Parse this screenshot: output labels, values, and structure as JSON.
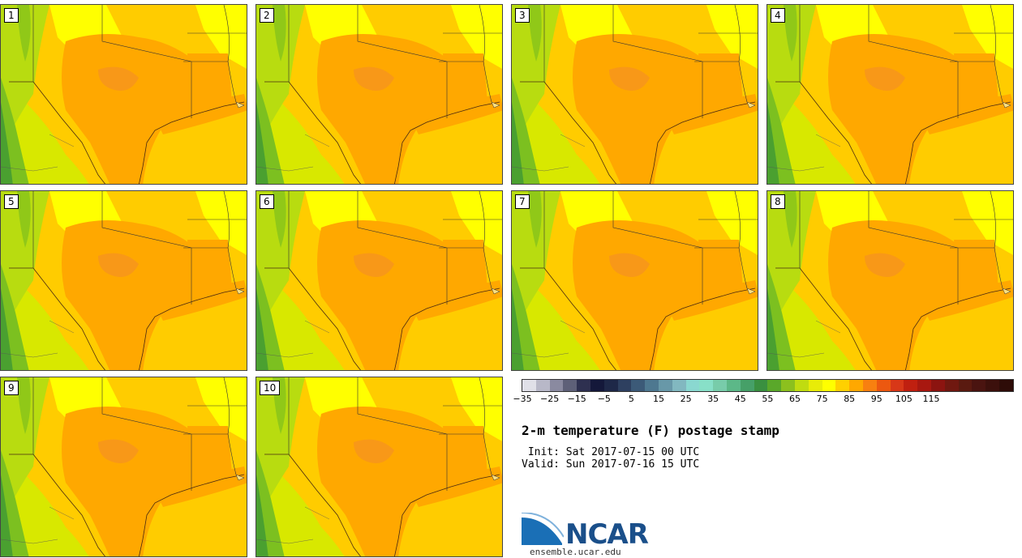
{
  "panels": [
    {
      "label": "1"
    },
    {
      "label": "2"
    },
    {
      "label": "3"
    },
    {
      "label": "4"
    },
    {
      "label": "5"
    },
    {
      "label": "6"
    },
    {
      "label": "7"
    },
    {
      "label": "8"
    },
    {
      "label": "9"
    },
    {
      "label": "10"
    }
  ],
  "colorbar": {
    "colors": [
      "#e0e0e8",
      "#b8b8c8",
      "#8a8aa0",
      "#5e6078",
      "#2e3050",
      "#14183a",
      "#1e2848",
      "#2e4060",
      "#3c5a78",
      "#4e7890",
      "#6898a8",
      "#82b8c0",
      "#8ad8d0",
      "#88e0c8",
      "#78ccaa",
      "#5cb888",
      "#46a068",
      "#3a9040",
      "#5aa82a",
      "#8cc01e",
      "#c0dc10",
      "#e8ec08",
      "#ffff00",
      "#ffd000",
      "#ffa800",
      "#f88010",
      "#ec5810",
      "#d83818",
      "#c02010",
      "#a81810",
      "#8c1410",
      "#701810",
      "#5a1a10",
      "#4a1410",
      "#3c100c",
      "#2e0c08"
    ],
    "tick_labels": [
      "−35",
      "−25",
      "−15",
      "−5",
      "5",
      "15",
      "25",
      "35",
      "45",
      "55",
      "65",
      "75",
      "85",
      "95",
      "105",
      "115"
    ]
  },
  "title": "2-m temperature (F) postage stamp",
  "init_line": " Init: Sat 2017-07-15 00 UTC",
  "valid_line": "Valid: Sun 2017-07-16 15 UTC",
  "logo": {
    "name": "NCAR",
    "url": "ensemble.ucar.edu"
  }
}
